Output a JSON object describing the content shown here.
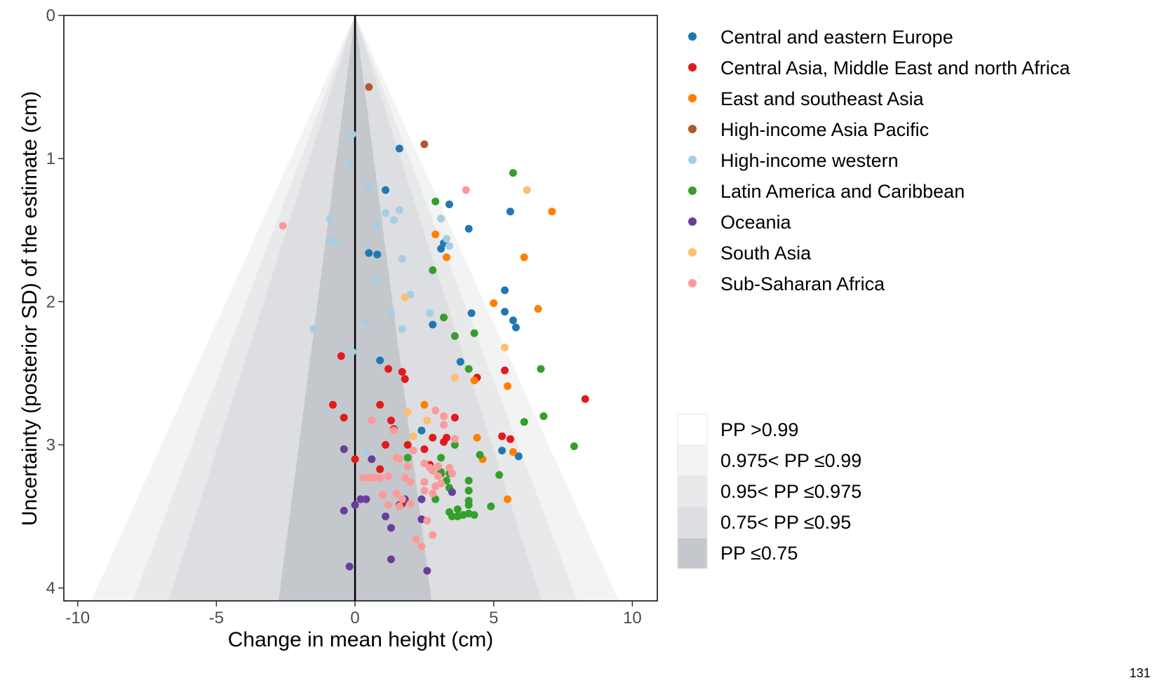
{
  "page_number": "131",
  "chart_data": {
    "type": "scatter",
    "xlabel": "Change in mean height (cm)",
    "ylabel": "Uncertainty (posterior SD) of the estimate (cm)",
    "x_ticks": [
      "-10",
      "-5",
      "0",
      "5",
      "10"
    ],
    "y_ticks": [
      "0",
      "1",
      "2",
      "3",
      "4"
    ],
    "xlim": [
      -10.5,
      10.9
    ],
    "ylim": [
      0,
      4.09
    ],
    "y_reversed": true,
    "grid": false,
    "legend_position": "right",
    "regions_legend": [
      {
        "label": "PP >0.99",
        "color": "#ffffff",
        "z": 99
      },
      {
        "label": "0.975< PP ≤0.99",
        "color": "#f2f3f3",
        "z": 2.326
      },
      {
        "label": "0.95< PP ≤0.975",
        "color": "#e8e9ea",
        "z": 1.96
      },
      {
        "label": "0.75< PP ≤0.95",
        "color": "#dcdee1",
        "z": 1.645
      },
      {
        "label": "PP ≤0.75",
        "color": "#c4c8cd",
        "z": 0.674
      }
    ],
    "series": [
      {
        "name": "Central and eastern Europe",
        "color": "#1f78b4",
        "points": [
          [
            1.6,
            0.93
          ],
          [
            1.1,
            1.22
          ],
          [
            3.4,
            1.32
          ],
          [
            5.6,
            1.37
          ],
          [
            4.1,
            1.49
          ],
          [
            0.5,
            1.66
          ],
          [
            0.8,
            1.67
          ],
          [
            3.2,
            1.59
          ],
          [
            3.1,
            1.63
          ],
          [
            5.4,
            1.92
          ],
          [
            4.2,
            2.08
          ],
          [
            5.4,
            2.07
          ],
          [
            5.7,
            2.13
          ],
          [
            5.8,
            2.18
          ],
          [
            2.8,
            2.16
          ],
          [
            0.9,
            2.41
          ],
          [
            3.8,
            2.42
          ],
          [
            2.4,
            2.9
          ],
          [
            5.3,
            3.04
          ],
          [
            5.9,
            3.08
          ]
        ]
      },
      {
        "name": "Central Asia, Middle East and north Africa",
        "color": "#e31a1c",
        "points": [
          [
            8.3,
            2.68
          ],
          [
            -0.5,
            2.38
          ],
          [
            1.2,
            2.47
          ],
          [
            1.7,
            2.49
          ],
          [
            1.8,
            2.54
          ],
          [
            4.4,
            2.53
          ],
          [
            5.4,
            2.48
          ],
          [
            -0.8,
            2.72
          ],
          [
            0.9,
            2.72
          ],
          [
            -0.4,
            2.81
          ],
          [
            1.3,
            2.83
          ],
          [
            1.4,
            2.89
          ],
          [
            3.6,
            2.81
          ],
          [
            1.1,
            3.0
          ],
          [
            1.9,
            3.0
          ],
          [
            2.5,
            3.03
          ],
          [
            2.8,
            2.95
          ],
          [
            3.3,
            2.95
          ],
          [
            3.2,
            2.98
          ],
          [
            5.3,
            2.94
          ],
          [
            5.6,
            2.96
          ],
          [
            0.0,
            3.1
          ],
          [
            0.9,
            3.17
          ],
          [
            3.1,
            3.2
          ],
          [
            2.7,
            3.14
          ],
          [
            1.7,
            3.41
          ]
        ]
      },
      {
        "name": "East and southeast Asia",
        "color": "#ff7f00",
        "points": [
          [
            7.1,
            1.37
          ],
          [
            2.9,
            1.53
          ],
          [
            3.3,
            1.69
          ],
          [
            6.1,
            1.69
          ],
          [
            5.0,
            2.01
          ],
          [
            6.6,
            2.05
          ],
          [
            4.3,
            2.55
          ],
          [
            5.5,
            2.59
          ],
          [
            2.5,
            2.72
          ],
          [
            4.4,
            2.95
          ],
          [
            5.7,
            3.05
          ],
          [
            4.6,
            3.1
          ],
          [
            5.5,
            3.38
          ]
        ]
      },
      {
        "name": "High-income Asia Pacific",
        "color": "#b15928",
        "points": [
          [
            0.5,
            0.5
          ],
          [
            2.5,
            0.9
          ]
        ]
      },
      {
        "name": "High-income western",
        "color": "#a6cee3",
        "points": [
          [
            -0.1,
            0.83
          ],
          [
            -0.2,
            1.04
          ],
          [
            0.5,
            1.2
          ],
          [
            1.1,
            1.38
          ],
          [
            1.6,
            1.36
          ],
          [
            1.4,
            1.43
          ],
          [
            -0.9,
            1.42
          ],
          [
            0.8,
            1.47
          ],
          [
            3.1,
            1.42
          ],
          [
            3.3,
            1.56
          ],
          [
            3.4,
            1.61
          ],
          [
            -0.9,
            1.58
          ],
          [
            -0.7,
            1.58
          ],
          [
            1.7,
            1.7
          ],
          [
            0.8,
            1.84
          ],
          [
            2.0,
            1.95
          ],
          [
            1.3,
            2.08
          ],
          [
            2.7,
            2.08
          ],
          [
            0.4,
            2.14
          ],
          [
            1.7,
            2.19
          ],
          [
            -1.5,
            2.19
          ],
          [
            -0.1,
            2.35
          ],
          [
            0.4,
            3.05
          ]
        ]
      },
      {
        "name": "Latin America and Caribbean",
        "color": "#33a02c",
        "points": [
          [
            5.7,
            1.1
          ],
          [
            2.9,
            1.3
          ],
          [
            2.8,
            1.78
          ],
          [
            3.2,
            2.11
          ],
          [
            3.6,
            2.24
          ],
          [
            4.3,
            2.22
          ],
          [
            4.1,
            2.47
          ],
          [
            6.7,
            2.47
          ],
          [
            6.8,
            2.8
          ],
          [
            6.1,
            2.84
          ],
          [
            7.9,
            3.01
          ],
          [
            3.6,
            3.0
          ],
          [
            4.5,
            3.07
          ],
          [
            1.9,
            3.09
          ],
          [
            3.1,
            3.09
          ],
          [
            5.2,
            3.21
          ],
          [
            3.4,
            3.2
          ],
          [
            3.3,
            3.25
          ],
          [
            4.1,
            3.25
          ],
          [
            3.4,
            3.3
          ],
          [
            4.1,
            3.32
          ],
          [
            2.9,
            3.38
          ],
          [
            4.1,
            3.39
          ],
          [
            4.9,
            3.43
          ],
          [
            4.1,
            3.42
          ],
          [
            3.7,
            3.45
          ],
          [
            3.4,
            3.47
          ],
          [
            3.5,
            3.5
          ],
          [
            3.7,
            3.5
          ],
          [
            3.9,
            3.49
          ],
          [
            4.1,
            3.48
          ],
          [
            4.3,
            3.49
          ],
          [
            3.1,
            3.19
          ]
        ]
      },
      {
        "name": "Oceania",
        "color": "#6a3d9a",
        "points": [
          [
            -0.4,
            3.03
          ],
          [
            0.6,
            3.1
          ],
          [
            -0.4,
            3.46
          ],
          [
            0.0,
            3.42
          ],
          [
            0.2,
            3.38
          ],
          [
            0.4,
            3.38
          ],
          [
            1.8,
            3.38
          ],
          [
            2.4,
            3.38
          ],
          [
            1.1,
            3.5
          ],
          [
            2.4,
            3.52
          ],
          [
            1.3,
            3.58
          ],
          [
            1.3,
            3.8
          ],
          [
            -0.2,
            3.85
          ],
          [
            2.6,
            3.88
          ],
          [
            3.5,
            3.33
          ],
          [
            1.6,
            3.42
          ]
        ]
      },
      {
        "name": "South Asia",
        "color": "#fdbf6f",
        "points": [
          [
            6.2,
            1.22
          ],
          [
            1.8,
            1.97
          ],
          [
            5.4,
            2.32
          ],
          [
            3.6,
            2.53
          ],
          [
            1.9,
            2.77
          ],
          [
            2.6,
            2.83
          ],
          [
            2.1,
            2.94
          ]
        ]
      },
      {
        "name": "Sub-Saharan Africa",
        "color": "#fb9a99",
        "points": [
          [
            -2.6,
            1.47
          ],
          [
            4.0,
            1.22
          ],
          [
            0.6,
            2.83
          ],
          [
            1.4,
            2.9
          ],
          [
            2.9,
            2.76
          ],
          [
            3.2,
            2.8
          ],
          [
            3.2,
            2.86
          ],
          [
            3.6,
            2.96
          ],
          [
            2.1,
            3.04
          ],
          [
            1.6,
            3.1
          ],
          [
            1.9,
            3.15
          ],
          [
            2.5,
            3.13
          ],
          [
            2.7,
            3.16
          ],
          [
            2.8,
            3.18
          ],
          [
            3.0,
            3.15
          ],
          [
            3.4,
            3.16
          ],
          [
            3.5,
            3.2
          ],
          [
            0.3,
            3.23
          ],
          [
            0.5,
            3.23
          ],
          [
            0.7,
            3.23
          ],
          [
            0.9,
            3.23
          ],
          [
            1.2,
            3.22
          ],
          [
            1.8,
            3.23
          ],
          [
            2.0,
            3.26
          ],
          [
            2.5,
            3.26
          ],
          [
            2.9,
            3.29
          ],
          [
            3.1,
            3.27
          ],
          [
            2.5,
            3.32
          ],
          [
            2.8,
            3.34
          ],
          [
            1.0,
            3.35
          ],
          [
            1.5,
            3.34
          ],
          [
            1.7,
            3.38
          ],
          [
            1.2,
            3.42
          ],
          [
            2.0,
            3.41
          ],
          [
            1.6,
            3.43
          ],
          [
            2.6,
            3.53
          ],
          [
            2.8,
            3.63
          ],
          [
            2.2,
            3.66
          ],
          [
            2.4,
            3.71
          ],
          [
            3.0,
            3.22
          ],
          [
            1.5,
            3.09
          ]
        ]
      }
    ]
  }
}
